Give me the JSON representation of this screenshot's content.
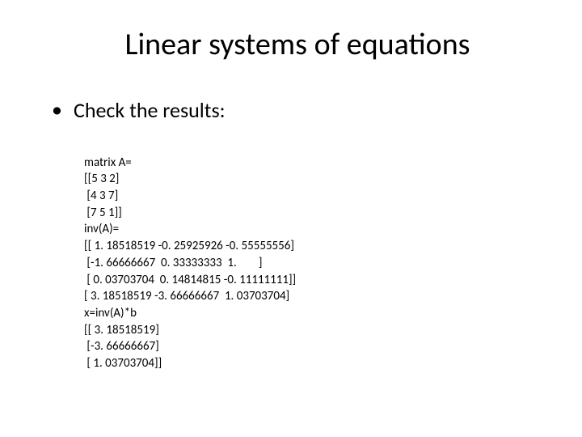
{
  "slide": {
    "title": "Linear systems of equations",
    "title_fontsize": 38,
    "background_color": "#ffffff",
    "text_color": "#000000",
    "bullet": {
      "marker": "•",
      "text": "Check the results:",
      "fontsize": 26
    },
    "code": {
      "fontsize": 15,
      "lines": [
        "matrix A=",
        "[[5 3 2]",
        " [4 3 7]",
        " [7 5 1]]",
        "inv(A)=",
        "[[ 1. 18518519 -0. 25925926 -0. 55555556]",
        " [-1. 66666667  0. 33333333  1.        ]",
        " [ 0. 03703704  0. 14814815 -0. 11111111]]",
        "[ 3. 18518519 -3. 66666667  1. 03703704]",
        "x=inv(A)*b",
        "[[ 3. 18518519]",
        " [-3. 66666667]",
        " [ 1. 03703704]]"
      ]
    }
  }
}
